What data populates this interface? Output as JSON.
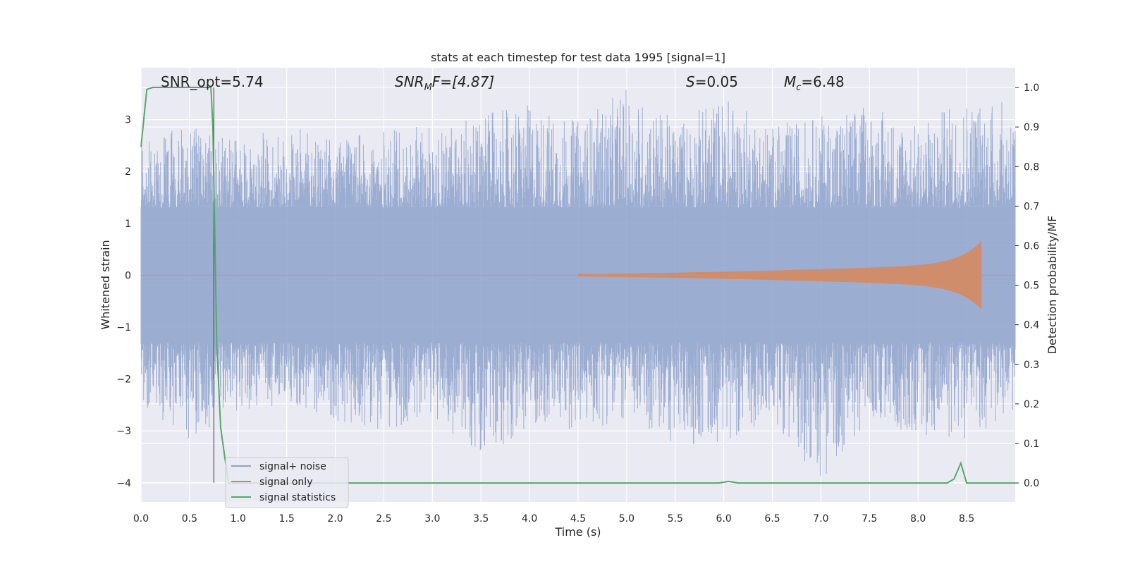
{
  "chart_data": {
    "type": "line",
    "title": "stats at each timestep for test data 1995 [signal=1]",
    "xlabel": "Time (s)",
    "ylabel": "Whitened strain",
    "ylabel_right": "Detection probability/MF",
    "xlim": [
      0,
      9.0
    ],
    "ylim": [
      -4.37,
      4.0
    ],
    "ylim_right": [
      -0.048,
      1.05
    ],
    "x_ticks": [
      "0.0",
      "0.5",
      "1.0",
      "1.5",
      "2.0",
      "2.5",
      "3.0",
      "3.5",
      "4.0",
      "4.5",
      "5.0",
      "5.5",
      "6.0",
      "6.5",
      "7.0",
      "7.5",
      "8.0",
      "8.5"
    ],
    "y_ticks": [
      -4,
      -3,
      -2,
      -1,
      0,
      1,
      2,
      3
    ],
    "y_ticks_right": [
      "0.0",
      "0.1",
      "0.2",
      "0.3",
      "0.4",
      "0.5",
      "0.6",
      "0.7",
      "0.8",
      "0.9",
      "1.0"
    ],
    "grid": true,
    "legend_position": "lower-left",
    "annotations": {
      "snr_opt": "SNR_opt=5.74",
      "snr_mf_main": "SNR",
      "snr_mf_sub": "M",
      "snr_mf_rest": "F=[4.87]",
      "s_main": "S",
      "s_rest": "=0.05",
      "mc_main": "M",
      "mc_sub": "c",
      "mc_rest": "=6.48"
    },
    "vertical_marker_x": 0.75,
    "series": [
      {
        "name": "signal+ noise",
        "color": "#8ea2cc",
        "envelope_x": [
          0.0,
          0.5,
          1.0,
          1.5,
          2.0,
          2.5,
          3.0,
          3.5,
          4.0,
          4.5,
          5.0,
          5.5,
          6.0,
          6.5,
          7.0,
          7.5,
          8.0,
          8.5,
          9.0
        ],
        "envelope_upper": [
          2.6,
          2.9,
          2.6,
          2.9,
          2.6,
          2.8,
          2.9,
          3.1,
          3.3,
          3.0,
          3.6,
          3.0,
          3.5,
          2.9,
          3.1,
          3.3,
          2.9,
          3.5,
          3.3
        ],
        "envelope_lower": [
          -2.5,
          -3.2,
          -2.6,
          -2.5,
          -2.8,
          -3.0,
          -2.7,
          -3.6,
          -2.9,
          -3.0,
          -2.8,
          -3.3,
          -3.2,
          -2.8,
          -4.0,
          -2.8,
          -3.1,
          -3.2,
          -2.7
        ]
      },
      {
        "name": "signal only",
        "color": "#dd8452",
        "chirp_start": 4.5,
        "chirp_end": 8.65,
        "peak_amplitude": 0.65
      },
      {
        "name": "signal statistics",
        "color": "#55a868",
        "x": [
          0.0,
          0.06,
          0.12,
          0.2,
          0.4,
          0.6,
          0.72,
          0.74,
          0.78,
          0.82,
          0.9,
          1.0,
          2.0,
          3.0,
          4.0,
          5.0,
          5.95,
          6.05,
          6.15,
          6.5,
          7.0,
          8.0,
          8.3,
          8.37,
          8.44,
          8.5,
          8.6,
          9.0
        ],
        "y": [
          0.85,
          0.995,
          1.0,
          1.0,
          1.0,
          1.0,
          1.0,
          0.9,
          0.35,
          0.14,
          0.0,
          0.0,
          0.0,
          0.0,
          0.0,
          0.0,
          0.0,
          0.004,
          0.0,
          0.0,
          0.0,
          0.0,
          0.0,
          0.01,
          0.05,
          0.0,
          0.0,
          0.0
        ]
      }
    ]
  }
}
